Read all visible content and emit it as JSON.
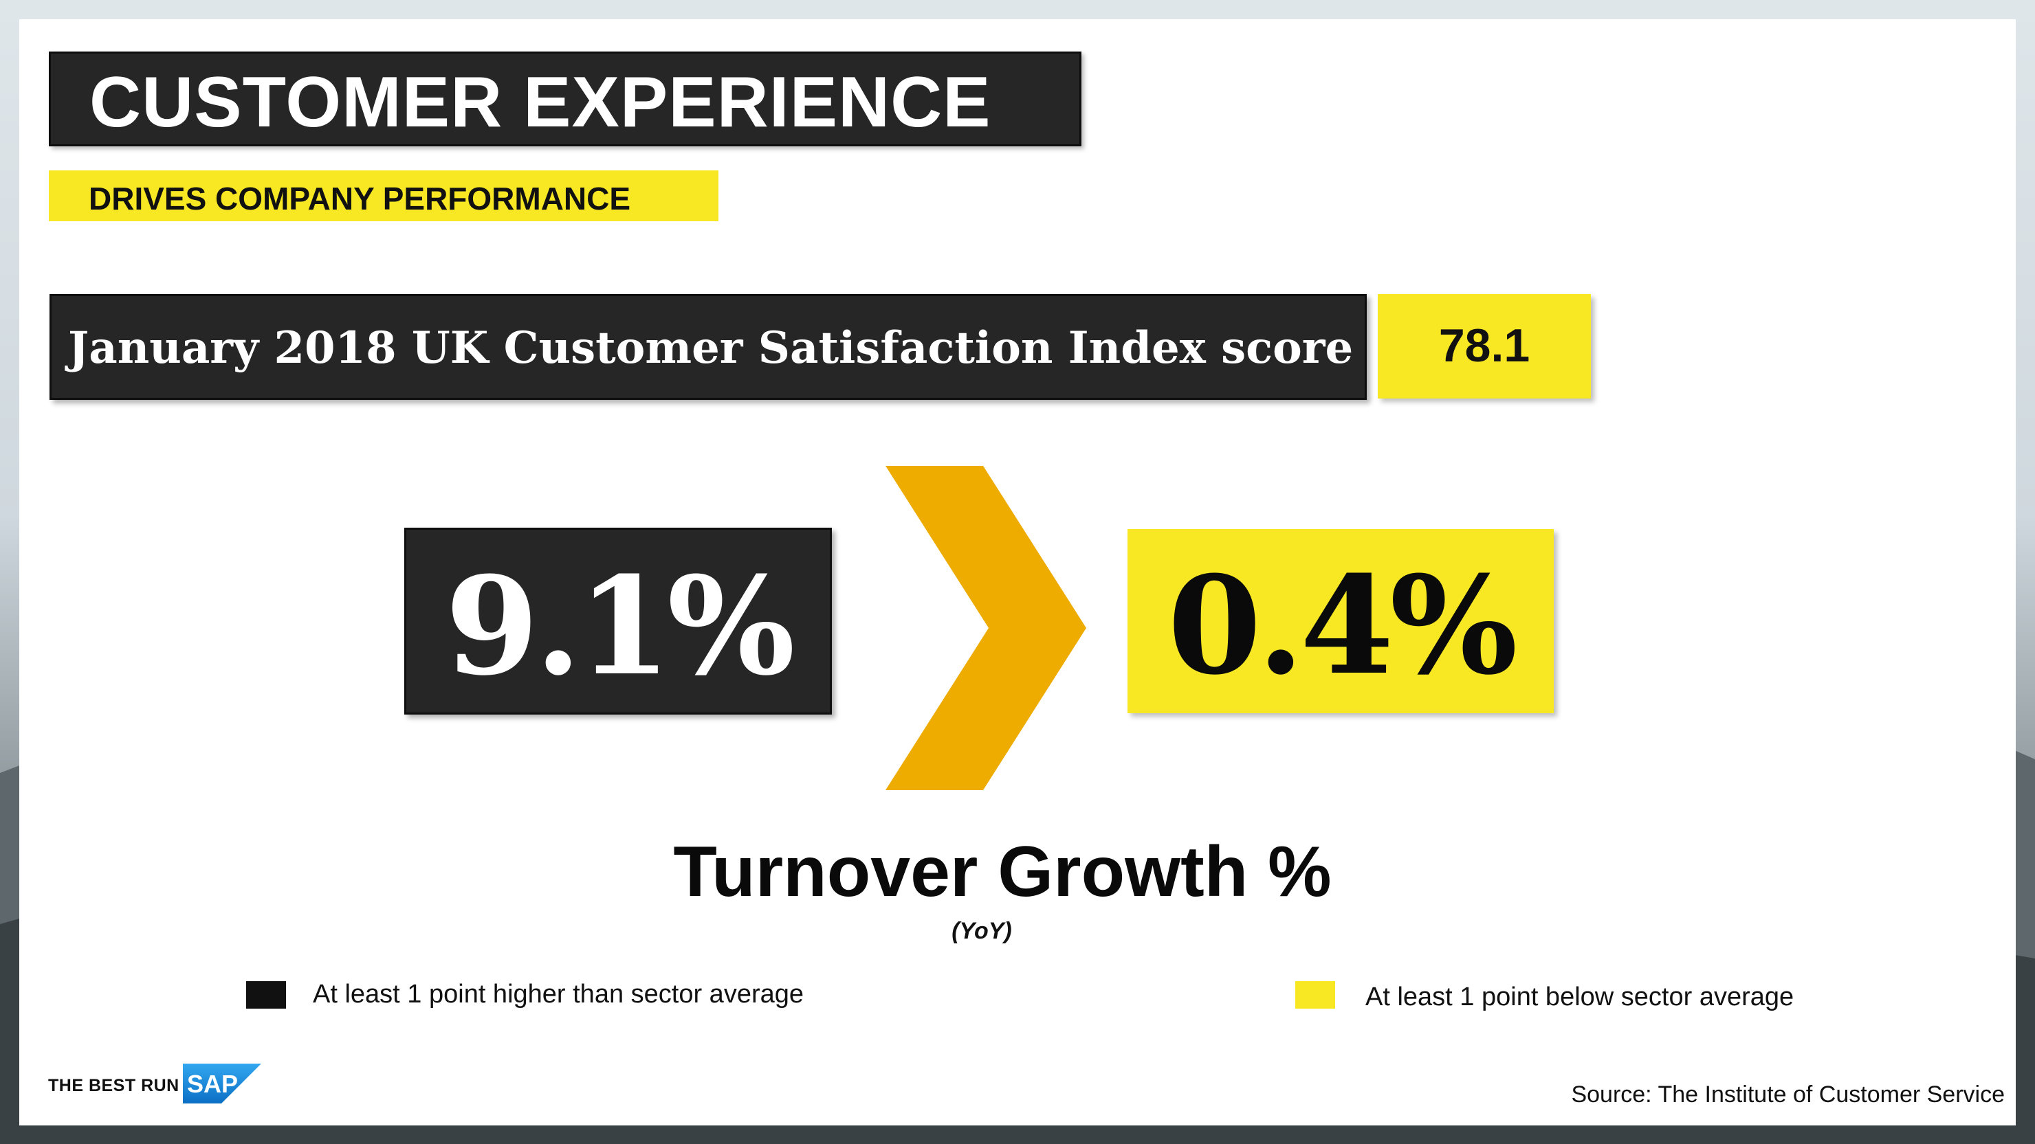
{
  "slide": {
    "title": "CUSTOMER EXPERIENCE",
    "subtitle": "DRIVES COMPANY PERFORMANCE"
  },
  "csi": {
    "label": "January 2018 UK Customer Satisfaction Index score",
    "score": "78.1"
  },
  "comparison": {
    "higher_value": "9.1%",
    "lower_value": "0.4%",
    "metric_title": "Turnover Growth %",
    "metric_note": "(YoY)"
  },
  "legend": {
    "higher": "At least 1 point higher than sector average",
    "lower": "At least 1 point below sector average"
  },
  "footer": {
    "tagline": "THE BEST RUN",
    "logo_text": "SAP",
    "source": "Source: The Institute of Customer Service"
  },
  "colors": {
    "dark": "#262626",
    "yellow": "#f7e823",
    "chevron": "#eeab00",
    "sap_blue": "#1a8fe0"
  }
}
